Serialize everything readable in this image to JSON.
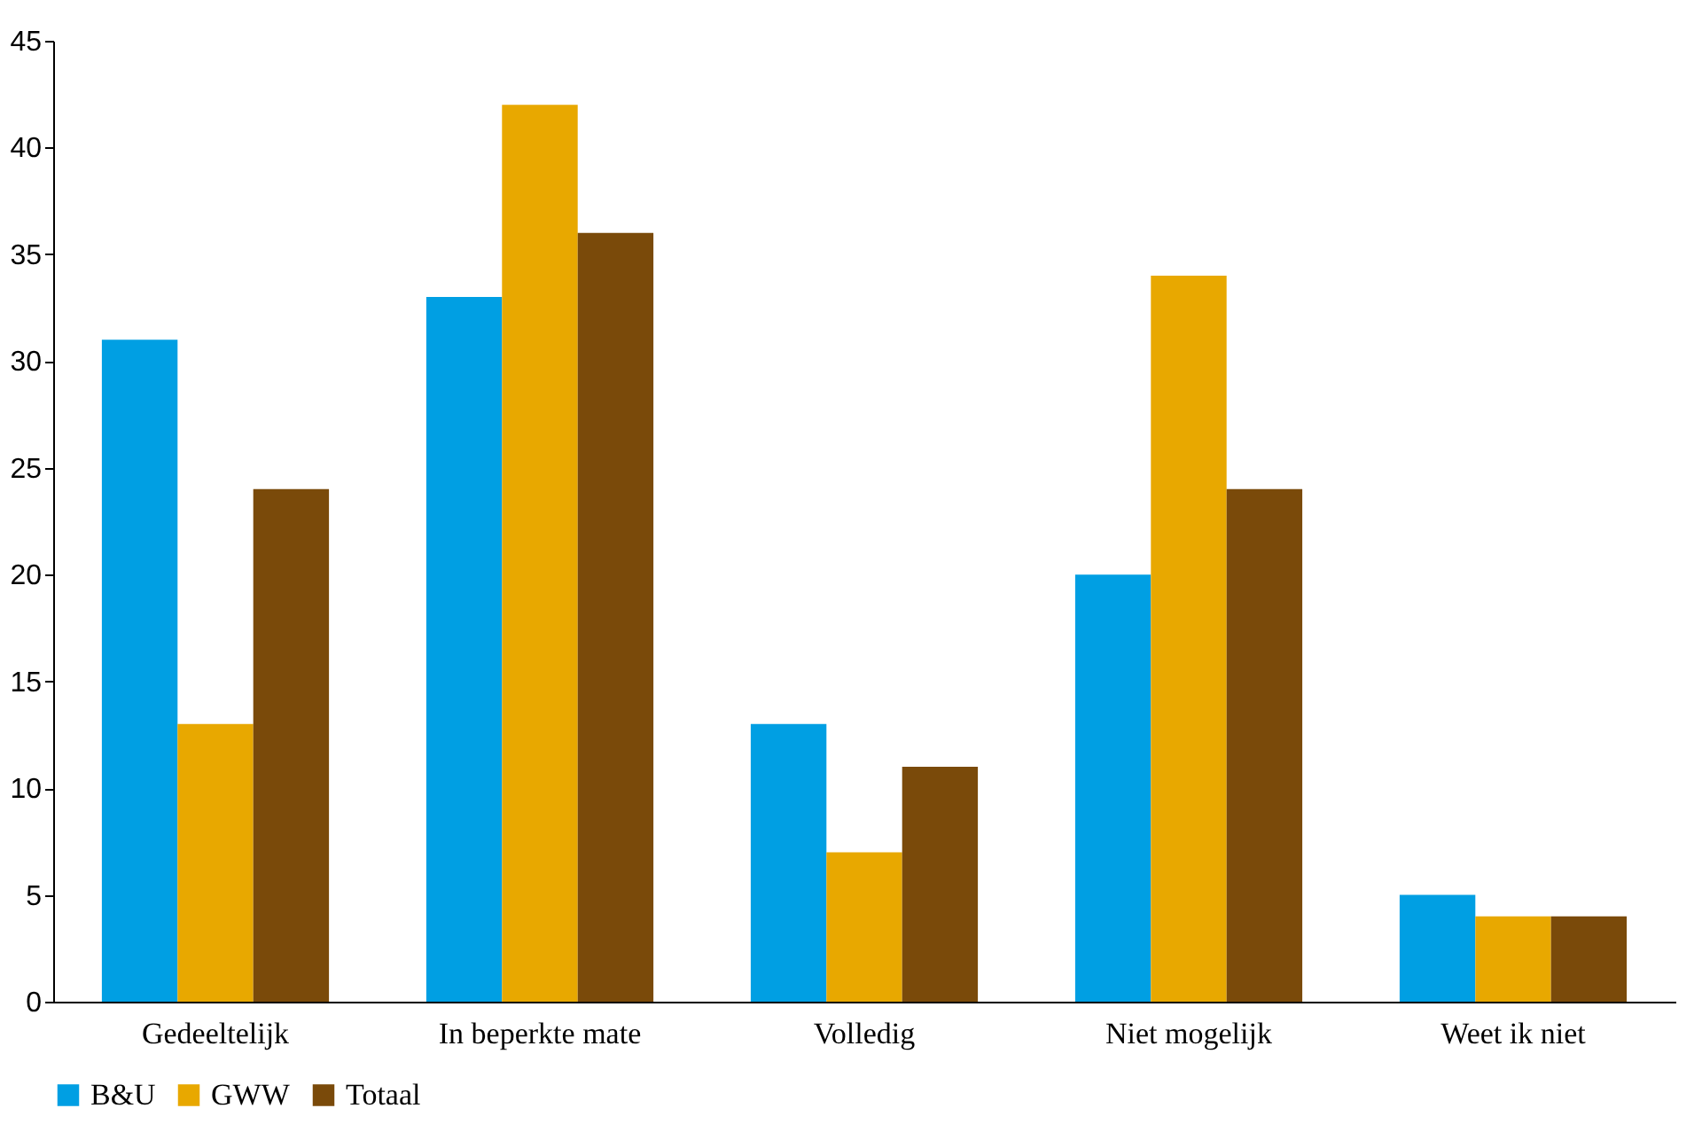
{
  "chart_data": {
    "type": "bar",
    "categories": [
      "Gedeeltelijk",
      "In beperkte mate",
      "Volledig",
      "Niet mogelijk",
      "Weet ik niet"
    ],
    "series": [
      {
        "name": "B&U",
        "color": "#009fe3",
        "values": [
          31,
          33,
          13,
          20,
          5
        ]
      },
      {
        "name": "GWW",
        "color": "#e8a800",
        "values": [
          13,
          42,
          7,
          34,
          4
        ]
      },
      {
        "name": "Totaal",
        "color": "#7a4a0a",
        "values": [
          24,
          36,
          11,
          24,
          4
        ]
      }
    ],
    "ylim": [
      0,
      45
    ],
    "yticks": [
      0,
      5,
      10,
      15,
      20,
      25,
      30,
      35,
      40,
      45
    ],
    "grid": false,
    "legend": "bottom"
  }
}
